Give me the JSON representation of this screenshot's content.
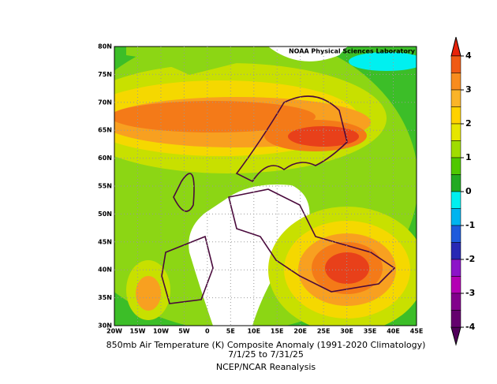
{
  "credit": "NOAA Physical Sciences Laboratory",
  "y_ticks": [
    "80N",
    "75N",
    "70N",
    "65N",
    "60N",
    "55N",
    "50N",
    "45N",
    "40N",
    "35N",
    "30N"
  ],
  "x_ticks": [
    "20W",
    "15W",
    "10W",
    "5W",
    "0",
    "5E",
    "10E",
    "15E",
    "20E",
    "25E",
    "30E",
    "35E",
    "40E",
    "45E"
  ],
  "colorbar_labels": [
    "4",
    "3",
    "2",
    "1",
    "0",
    "-1",
    "-2",
    "-3",
    "-4"
  ],
  "caption": [
    "850mb Air Temperature (K) Composite Anomaly (1991-2020 Climatology)",
    "7/1/25  to 7/31/25",
    "NCEP/NCAR Reanalysis"
  ]
}
